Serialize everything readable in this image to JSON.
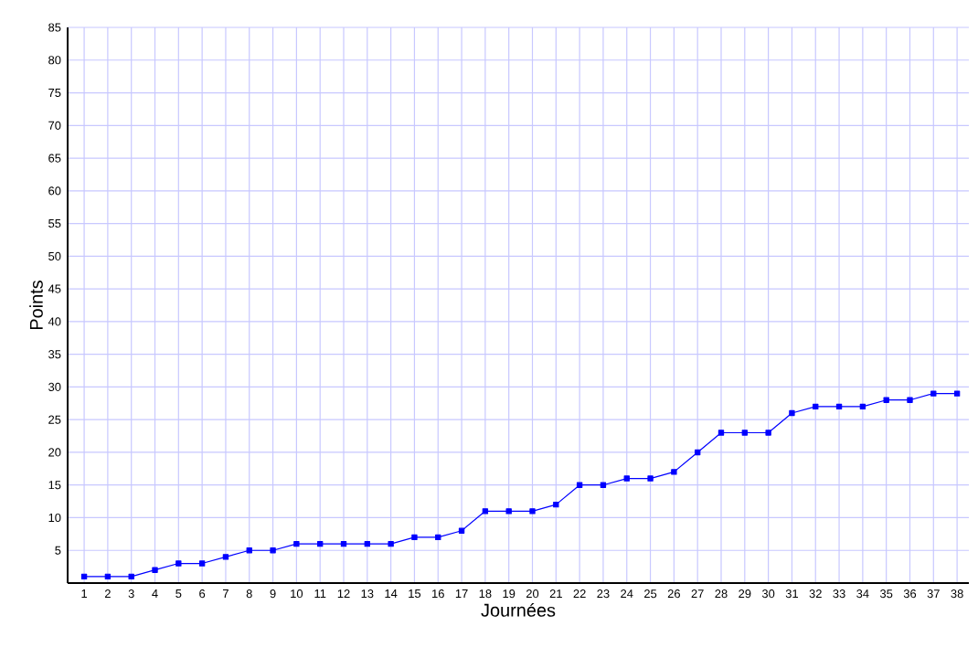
{
  "chart_data": {
    "type": "line",
    "xlabel": "Journées",
    "ylabel": "Points",
    "x": [
      1,
      2,
      3,
      4,
      5,
      6,
      7,
      8,
      9,
      10,
      11,
      12,
      13,
      14,
      15,
      16,
      17,
      18,
      19,
      20,
      21,
      22,
      23,
      24,
      25,
      26,
      27,
      28,
      29,
      30,
      31,
      32,
      33,
      34,
      35,
      36,
      37,
      38
    ],
    "values": [
      1,
      1,
      1,
      2,
      3,
      3,
      4,
      5,
      5,
      6,
      6,
      6,
      6,
      6,
      7,
      7,
      8,
      11,
      11,
      11,
      12,
      15,
      15,
      16,
      16,
      17,
      20,
      23,
      23,
      23,
      26,
      27,
      27,
      27,
      28,
      28,
      29,
      29
    ],
    "color": "#0000ff",
    "marker": "square",
    "line_style": "solid",
    "grid": true,
    "xlim": [
      0.3,
      38.5
    ],
    "ylim": [
      0,
      85
    ],
    "xticks": [
      1,
      2,
      3,
      4,
      5,
      6,
      7,
      8,
      9,
      10,
      11,
      12,
      13,
      14,
      15,
      16,
      17,
      18,
      19,
      20,
      21,
      22,
      23,
      24,
      25,
      26,
      27,
      28,
      29,
      30,
      31,
      32,
      33,
      34,
      35,
      36,
      37,
      38
    ],
    "yticks": [
      5,
      10,
      15,
      20,
      25,
      30,
      35,
      40,
      45,
      50,
      55,
      60,
      65,
      70,
      75,
      80,
      85
    ]
  }
}
